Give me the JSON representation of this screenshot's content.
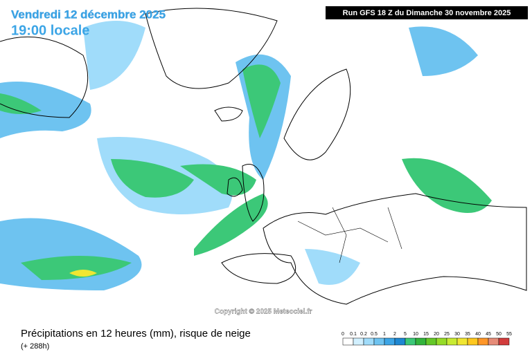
{
  "header": {
    "date": "Vendredi 12 décembre 2025",
    "time": "19:00 locale",
    "run": "Run GFS 18 Z du Dimanche 30 novembre 2025"
  },
  "copyright": "Copyright © 2025 Meteociel.fr",
  "footer": {
    "title": "Précipitations en 12 heures (mm), risque de neige",
    "lead": "(+ 288h)"
  },
  "legend": {
    "labels": [
      "0",
      "0.1",
      "0.2",
      "0.5",
      "1",
      "2",
      "5",
      "10",
      "15",
      "20",
      "25",
      "30",
      "35",
      "40",
      "45",
      "50",
      "55"
    ],
    "colors": [
      "#ffffff",
      "#d2f0ff",
      "#a0dcfa",
      "#6ec3f0",
      "#3ca5e6",
      "#1e87d2",
      "#3cc878",
      "#32b43c",
      "#64c828",
      "#96dc28",
      "#c8eb32",
      "#f0e632",
      "#ffc81e",
      "#ff9628",
      "#e68c78",
      "#d23c3c"
    ]
  }
}
